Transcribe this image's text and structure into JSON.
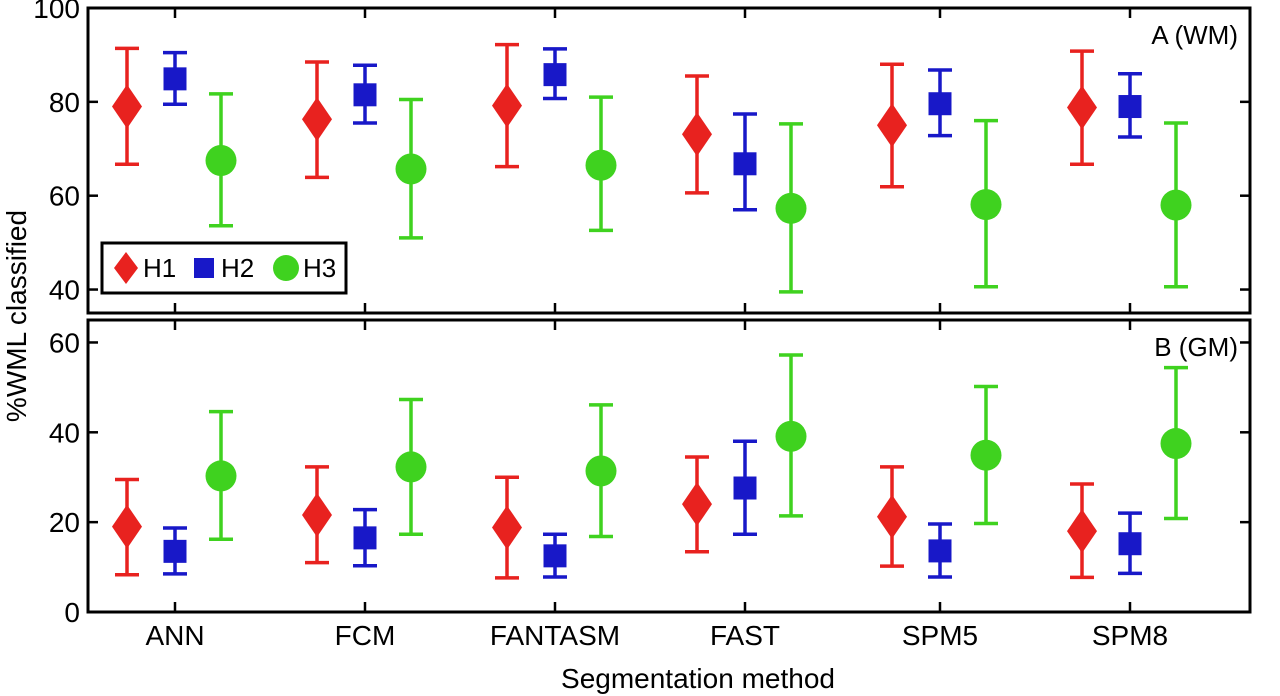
{
  "chart_data": {
    "type": "scatter",
    "xlabel": "Segmentation method",
    "ylabel": "%WML classified",
    "categories": [
      "ANN",
      "FCM",
      "FANTASM",
      "FAST",
      "SPM5",
      "SPM8"
    ],
    "legend": {
      "placement": "left",
      "entries": [
        "H1",
        "H2",
        "H3"
      ]
    },
    "colors": {
      "H1": "#e8221f",
      "H2": "#1818c8",
      "H3": "#3fd21f"
    },
    "panels": [
      {
        "label": "A (WM)",
        "ylim": [
          35,
          100
        ],
        "yticks": [
          "40",
          "60",
          "80",
          "100"
        ],
        "yticks_values": [
          40,
          60,
          80,
          100
        ],
        "series": [
          {
            "name": "H1",
            "marker": "diamond",
            "mean": [
              79,
              76.3,
              79.2,
              73.1,
              75,
              78.8
            ],
            "low": [
              66.7,
              63.9,
              66.2,
              60.6,
              61.9,
              66.7
            ],
            "high": [
              91.4,
              88.5,
              92.2,
              85.5,
              88,
              90.8
            ]
          },
          {
            "name": "H2",
            "marker": "square",
            "mean": [
              84.9,
              81.5,
              85.8,
              66.8,
              79.6,
              79
            ],
            "low": [
              79.5,
              75.5,
              80.7,
              57,
              72.8,
              72.5
            ],
            "high": [
              90.5,
              87.8,
              91.3,
              77.4,
              86.8,
              86
            ]
          },
          {
            "name": "H3",
            "marker": "circle",
            "mean": [
              67.5,
              65.7,
              66.5,
              57.3,
              58.1,
              58
            ],
            "low": [
              53.6,
              51,
              52.6,
              39.5,
              40.6,
              40.6
            ],
            "high": [
              81.7,
              80.5,
              81,
              75.3,
              76,
              75.5
            ]
          }
        ]
      },
      {
        "label": "B (GM)",
        "ylim": [
          0,
          65
        ],
        "yticks": [
          "0",
          "20",
          "40",
          "60"
        ],
        "yticks_values": [
          0,
          20,
          40,
          60
        ],
        "series": [
          {
            "name": "H1",
            "marker": "diamond",
            "mean": [
              19,
              21.6,
              18.8,
              24,
              21.2,
              18
            ],
            "low": [
              8.3,
              11,
              7.6,
              13.4,
              10.2,
              7.7
            ],
            "high": [
              29.5,
              32.3,
              30,
              34.5,
              32.3,
              28.5
            ]
          },
          {
            "name": "H2",
            "marker": "square",
            "mean": [
              13.5,
              16.5,
              12.5,
              27.6,
              13.6,
              15.2
            ],
            "low": [
              8.5,
              10.3,
              7.8,
              17.3,
              7.8,
              8.6
            ],
            "high": [
              18.7,
              22.8,
              17.3,
              38,
              19.6,
              22
            ]
          },
          {
            "name": "H3",
            "marker": "circle",
            "mean": [
              30.3,
              32.3,
              31.4,
              39.1,
              34.9,
              37.5
            ],
            "low": [
              16.2,
              17.3,
              16.8,
              21.4,
              19.7,
              20.8
            ],
            "high": [
              44.6,
              47.3,
              46.1,
              57.2,
              50.2,
              54.4
            ]
          }
        ]
      }
    ]
  }
}
